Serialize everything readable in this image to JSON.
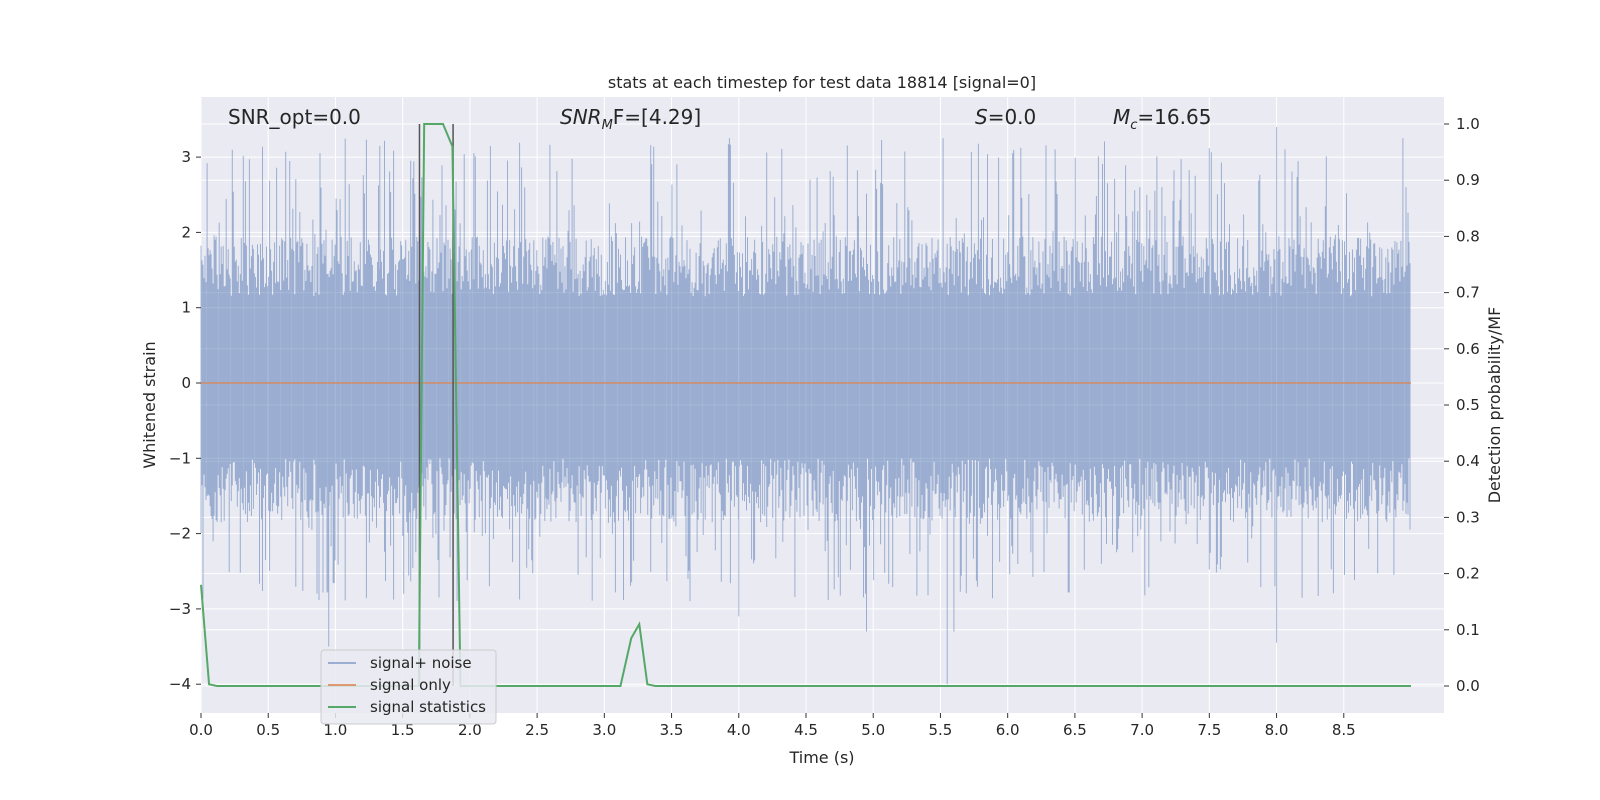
{
  "chart_data": {
    "type": "line",
    "title": "stats at each timestep for test data 18814 [signal=0]",
    "xlabel": "Time (s)",
    "ylabel": "Whitened strain",
    "ylabel_right": "Detection probability/MF",
    "xlim": [
      0.0,
      9.0
    ],
    "ylim": [
      -4.35,
      3.85
    ],
    "ylim_right": [
      -0.048,
      1.048
    ],
    "x_ticks": [
      0.0,
      0.5,
      1.0,
      1.5,
      2.0,
      2.5,
      3.0,
      3.5,
      4.0,
      4.5,
      5.0,
      5.5,
      6.0,
      6.5,
      7.0,
      7.5,
      8.0,
      8.5
    ],
    "x_tick_labels": [
      "0.0",
      "0.5",
      "1.0",
      "1.5",
      "2.0",
      "2.5",
      "3.0",
      "3.5",
      "4.0",
      "4.5",
      "5.0",
      "5.5",
      "6.0",
      "6.5",
      "7.0",
      "7.5",
      "8.0",
      "8.5"
    ],
    "y_ticks": [
      3,
      2,
      1,
      0,
      -1,
      -2,
      -3,
      -4
    ],
    "y_tick_labels": [
      "3",
      "2",
      "1",
      "0",
      "−1",
      "−2",
      "−3",
      "−4"
    ],
    "y_ticks_right": [
      1.0,
      0.9,
      0.8,
      0.7,
      0.6,
      0.5,
      0.4,
      0.3,
      0.2,
      0.1,
      0.0
    ],
    "y_tick_labels_right": [
      "1.0",
      "0.9",
      "0.8",
      "0.7",
      "0.6",
      "0.5",
      "0.4",
      "0.3",
      "0.2",
      "0.1",
      "0.0"
    ],
    "grid": true,
    "legend_position": "lower-left",
    "series": [
      {
        "name": "signal+ noise",
        "color": "#4c72b0",
        "axis": "left",
        "style": "dense noise trace, envelope approx -1.8 to 2.0 with spikes to ~3.4 and down to ~-4.0"
      },
      {
        "name": "signal only",
        "color": "#dd8452",
        "axis": "left",
        "x": [
          0.0,
          9.0
        ],
        "y": [
          0.0,
          0.0
        ]
      },
      {
        "name": "signal statistics",
        "color": "#55a868",
        "axis": "right",
        "x": [
          0.0,
          0.06,
          0.12,
          1.55,
          1.62,
          1.66,
          1.7,
          1.8,
          1.87,
          1.93,
          3.12,
          3.2,
          3.26,
          3.32,
          3.38,
          9.0
        ],
        "y": [
          0.18,
          0.003,
          0.0,
          0.0,
          0.0,
          1.0,
          1.0,
          1.0,
          0.96,
          0.0,
          0.0,
          0.085,
          0.11,
          0.003,
          0.0,
          0.0
        ]
      }
    ],
    "vertical_lines": [
      1.625,
      1.875
    ],
    "annotations": [
      {
        "text": "SNR_opt=0.0"
      },
      {
        "text_main": "SNR",
        "sub": "M",
        "text_rest": "F=[4.29]"
      },
      {
        "text_main": "S",
        "text_rest": "=0.0"
      },
      {
        "text_main": "M",
        "sub": "c",
        "text_rest": "=16.65"
      }
    ]
  },
  "colors": {
    "plot_background": "#eaeaf2",
    "grid": "#ffffff",
    "noise": "#4c72b0",
    "signal": "#dd8452",
    "stats": "#55a868",
    "vline": "#555555"
  }
}
